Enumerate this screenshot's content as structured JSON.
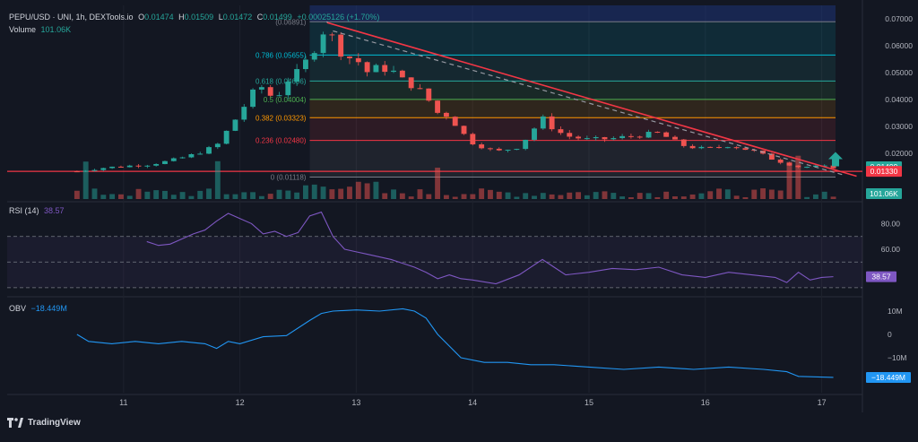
{
  "header": {
    "symbol": "PEPU/USD · UNI, 1h, DEXTools.io",
    "o_label": "O",
    "o_value": "0.01474",
    "h_label": "H",
    "h_value": "0.01509",
    "l_label": "L",
    "l_value": "0.01472",
    "c_label": "C",
    "c_value": "0.01499",
    "change": "+0.00025126 (+1.70%)",
    "volume_label": "Volume",
    "volume_value": "101.06K"
  },
  "rsi": {
    "label": "RSI (14)",
    "value": "38.57"
  },
  "obv": {
    "label": "OBV",
    "value": "−18.449M"
  },
  "footer": {
    "brand": "TradingView"
  },
  "colors": {
    "up": "#26a69a",
    "down": "#ef5350",
    "rsi": "#7e57c2",
    "obv": "#2196f3",
    "trend": "#f23645"
  },
  "chart_data": [
    {
      "type": "candlestick",
      "title": "PEPU/USD · UNI, 1h",
      "x_ticks": [
        "11",
        "12",
        "13",
        "14",
        "15",
        "16",
        "17"
      ],
      "x_range": [
        10.0,
        17.35
      ],
      "ylim": [
        0.003,
        0.075
      ],
      "y_ticks": [
        "0.07000",
        "0.06000",
        "0.05000",
        "0.04000",
        "0.03000",
        "0.02000"
      ],
      "price_labels": [
        {
          "text": "0.01499",
          "value": 0.01499,
          "color": "#26a69a"
        },
        {
          "text": "0.01330",
          "value": 0.0133,
          "color": "#f23645"
        }
      ],
      "volume_label": "101.06K",
      "fib_levels": [
        {
          "label": "(0.06891)",
          "value": 0.06891,
          "color": "#787b86"
        },
        {
          "label": "0.786 (0.05655)",
          "value": 0.05655,
          "color": "#00bcd4"
        },
        {
          "label": "0.618 (0.04686)",
          "value": 0.04686,
          "color": "#26a69a"
        },
        {
          "label": "0.5 (0.04004)",
          "value": 0.04004,
          "color": "#4caf50"
        },
        {
          "label": "0.382 (0.03323)",
          "value": 0.03323,
          "color": "#ff9800"
        },
        {
          "label": "0.236 (0.02480)",
          "value": 0.0248,
          "color": "#f23645"
        },
        {
          "label": "0 (0.01118)",
          "value": 0.01118,
          "color": "#787b86"
        }
      ],
      "trendline": [
        [
          12.75,
          0.0686
        ],
        [
          17.3,
          0.0115
        ]
      ],
      "horizontal_line": 0.0133,
      "close_path": [
        [
          10.6,
          0.0133
        ],
        [
          10.8,
          0.0145
        ],
        [
          11.0,
          0.0152
        ],
        [
          11.2,
          0.0158
        ],
        [
          11.4,
          0.0172
        ],
        [
          11.6,
          0.0195
        ],
        [
          11.8,
          0.0228
        ],
        [
          11.9,
          0.029
        ],
        [
          12.0,
          0.035
        ],
        [
          12.1,
          0.042
        ],
        [
          12.2,
          0.045
        ],
        [
          12.3,
          0.0395
        ],
        [
          12.4,
          0.047
        ],
        [
          12.5,
          0.05
        ],
        [
          12.6,
          0.056
        ],
        [
          12.7,
          0.064
        ],
        [
          12.75,
          0.0686
        ],
        [
          12.8,
          0.062
        ],
        [
          12.9,
          0.056
        ],
        [
          13.0,
          0.055
        ],
        [
          13.1,
          0.05
        ],
        [
          13.2,
          0.052
        ],
        [
          13.3,
          0.051
        ],
        [
          13.4,
          0.047
        ],
        [
          13.5,
          0.045
        ],
        [
          13.6,
          0.041
        ],
        [
          13.7,
          0.035
        ],
        [
          13.8,
          0.034
        ],
        [
          13.9,
          0.028
        ],
        [
          14.0,
          0.024
        ],
        [
          14.2,
          0.0205
        ],
        [
          14.4,
          0.0225
        ],
        [
          14.6,
          0.033
        ],
        [
          14.7,
          0.029
        ],
        [
          14.8,
          0.0265
        ],
        [
          15.0,
          0.025
        ],
        [
          15.2,
          0.0255
        ],
        [
          15.4,
          0.0265
        ],
        [
          15.6,
          0.0275
        ],
        [
          15.8,
          0.023
        ],
        [
          16.0,
          0.0215
        ],
        [
          16.2,
          0.023
        ],
        [
          16.4,
          0.021
        ],
        [
          16.6,
          0.0175
        ],
        [
          16.8,
          0.015
        ],
        [
          17.0,
          0.015
        ],
        [
          17.1,
          0.0149
        ]
      ]
    },
    {
      "type": "line",
      "title": "RSI (14)",
      "ylim": [
        25,
        95
      ],
      "y_ticks": [
        "80.00",
        "60.00"
      ],
      "bands": [
        70,
        50,
        30
      ],
      "series": [
        {
          "name": "RSI (14)",
          "values": [
            [
              11.2,
              66
            ],
            [
              11.3,
              63
            ],
            [
              11.4,
              64
            ],
            [
              11.5,
              68
            ],
            [
              11.6,
              72
            ],
            [
              11.7,
              75
            ],
            [
              11.8,
              82
            ],
            [
              11.9,
              88
            ],
            [
              12.0,
              84
            ],
            [
              12.1,
              80
            ],
            [
              12.2,
              72
            ],
            [
              12.3,
              74
            ],
            [
              12.4,
              70
            ],
            [
              12.5,
              73
            ],
            [
              12.6,
              86
            ],
            [
              12.7,
              89
            ],
            [
              12.8,
              70
            ],
            [
              12.9,
              60
            ],
            [
              13.0,
              58
            ],
            [
              13.1,
              56
            ],
            [
              13.2,
              54
            ],
            [
              13.3,
              52
            ],
            [
              13.4,
              49
            ],
            [
              13.5,
              46
            ],
            [
              13.6,
              42
            ],
            [
              13.7,
              37
            ],
            [
              13.8,
              40
            ],
            [
              13.9,
              37
            ],
            [
              14.0,
              36
            ],
            [
              14.2,
              33
            ],
            [
              14.4,
              40
            ],
            [
              14.6,
              52
            ],
            [
              14.7,
              46
            ],
            [
              14.8,
              40
            ],
            [
              15.0,
              42
            ],
            [
              15.2,
              45
            ],
            [
              15.4,
              44
            ],
            [
              15.6,
              46
            ],
            [
              15.8,
              40
            ],
            [
              16.0,
              38
            ],
            [
              16.2,
              42
            ],
            [
              16.4,
              40
            ],
            [
              16.6,
              38
            ],
            [
              16.7,
              34
            ],
            [
              16.8,
              42
            ],
            [
              16.9,
              36
            ],
            [
              17.0,
              38
            ],
            [
              17.1,
              38.57
            ]
          ]
        }
      ]
    },
    {
      "type": "line",
      "title": "OBV",
      "ylim": [
        -25,
        15
      ],
      "y_ticks": [
        "10M",
        "0",
        "−10M"
      ],
      "y_tick_values": [
        10,
        0,
        -10
      ],
      "price_label": {
        "text": "−18.449M",
        "value": -18.449
      },
      "series": [
        {
          "name": "OBV",
          "values": [
            [
              10.6,
              0
            ],
            [
              10.7,
              -3
            ],
            [
              10.9,
              -4
            ],
            [
              11.1,
              -3
            ],
            [
              11.3,
              -4
            ],
            [
              11.5,
              -3
            ],
            [
              11.7,
              -4
            ],
            [
              11.8,
              -6
            ],
            [
              11.9,
              -3
            ],
            [
              12.0,
              -4
            ],
            [
              12.2,
              -1
            ],
            [
              12.4,
              -0.5
            ],
            [
              12.6,
              6
            ],
            [
              12.7,
              9
            ],
            [
              12.8,
              10
            ],
            [
              13.0,
              10.5
            ],
            [
              13.2,
              10
            ],
            [
              13.4,
              11
            ],
            [
              13.5,
              10
            ],
            [
              13.6,
              7
            ],
            [
              13.7,
              0
            ],
            [
              13.8,
              -5
            ],
            [
              13.9,
              -10
            ],
            [
              14.1,
              -12
            ],
            [
              14.3,
              -12
            ],
            [
              14.5,
              -13
            ],
            [
              14.7,
              -13
            ],
            [
              15.0,
              -14
            ],
            [
              15.3,
              -15
            ],
            [
              15.6,
              -14
            ],
            [
              15.9,
              -15
            ],
            [
              16.2,
              -14
            ],
            [
              16.5,
              -15
            ],
            [
              16.7,
              -16
            ],
            [
              16.8,
              -18
            ],
            [
              17.0,
              -18.3
            ],
            [
              17.1,
              -18.449
            ]
          ]
        }
      ]
    }
  ]
}
